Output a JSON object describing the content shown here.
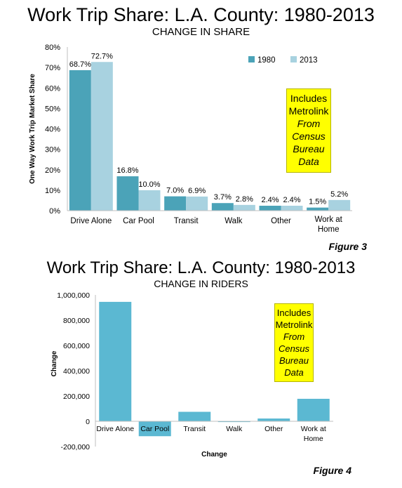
{
  "chart1": {
    "title": "Work Trip Share: L.A. County: 1980-2013",
    "subtitle": "CHANGE IN SHARE",
    "note": [
      "Includes",
      "Metrolink",
      "From",
      "Census",
      "Bureau",
      "Data"
    ],
    "figure_label": "Figure 3"
  },
  "chart2": {
    "title": "Work Trip Share: L.A. County: 1980-2013",
    "subtitle": "CHANGE IN RIDERS",
    "note": [
      "Includes",
      "Metrolink",
      "From",
      "Census",
      "Bureau",
      "Data"
    ],
    "figure_label": "Figure 4"
  },
  "colors": {
    "series_1980": "#4ba3b8",
    "series_2013": "#a8d2e0",
    "change_bar": "#5bb8d2",
    "note_bg": "#ffff00"
  },
  "chart_data": [
    {
      "type": "bar",
      "title": "Work Trip Share: L.A. County: 1980-2013",
      "subtitle": "CHANGE IN SHARE",
      "xlabel": "",
      "ylabel": "One Way Work Trip Market Share",
      "categories": [
        "Drive Alone",
        "Car Pool",
        "Transit",
        "Walk",
        "Other",
        "Work at Home"
      ],
      "series": [
        {
          "name": "1980",
          "values": [
            68.7,
            16.8,
            7.0,
            3.7,
            2.4,
            1.5
          ],
          "labels": [
            "68.7%",
            "16.8%",
            "7.0%",
            "3.7%",
            "2.4%",
            "1.5%"
          ]
        },
        {
          "name": "2013",
          "values": [
            72.7,
            10.0,
            6.9,
            2.8,
            2.4,
            5.2
          ],
          "labels": [
            "72.7%",
            "10.0%",
            "6.9%",
            "2.8%",
            "2.4%",
            "5.2%"
          ]
        }
      ],
      "ylim": [
        0,
        80
      ],
      "yticks": [
        0,
        10,
        20,
        30,
        40,
        50,
        60,
        70,
        80
      ],
      "ytick_labels": [
        "0%",
        "10%",
        "20%",
        "30%",
        "40%",
        "50%",
        "60%",
        "70%",
        "80%"
      ],
      "legend": "top-right",
      "grid": false
    },
    {
      "type": "bar",
      "title": "Work Trip Share: L.A. County: 1980-2013",
      "subtitle": "CHANGE IN RIDERS",
      "xlabel": "Change",
      "ylabel": "Change",
      "categories": [
        "Drive Alone",
        "Car Pool",
        "Transit",
        "Walk",
        "Other",
        "Work at Home"
      ],
      "values": [
        945000,
        -118000,
        75000,
        -6000,
        22000,
        178000
      ],
      "ylim": [
        -200000,
        1000000
      ],
      "yticks": [
        -200000,
        0,
        200000,
        400000,
        600000,
        800000,
        1000000
      ],
      "ytick_labels": [
        "-200,000",
        "0",
        "200,000",
        "400,000",
        "600,000",
        "800,000",
        "1,000,000"
      ],
      "legend": "none",
      "grid": false
    }
  ]
}
